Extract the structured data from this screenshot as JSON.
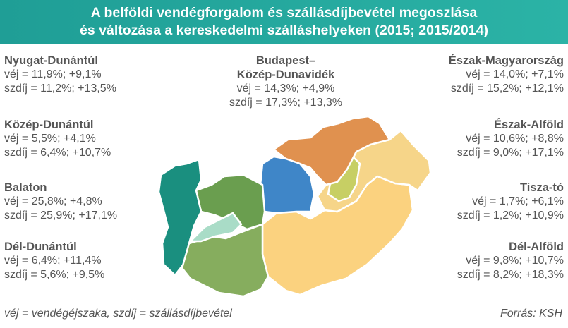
{
  "header": {
    "title_line1": "A belföldi vendégforgalom és szállásdíjbevétel megoszlása",
    "title_line2": "és változása a kereskedelmi szálláshelyeken (2015; 2015/2014)"
  },
  "regions": {
    "nyugat_dunantul": {
      "name": "Nyugat-Dunántúl",
      "vej": "véj = 11,9%; +9,1%",
      "szdij": "szdíj = 11,2%; +13,5%",
      "color": "#1a8f7f"
    },
    "kozep_dunantul": {
      "name": "Közép-Dunántúl",
      "vej": "véj = 5,5%; +4,1%",
      "szdij": "szdíj = 6,4%; +10,7%",
      "color": "#6a9e4f"
    },
    "balaton": {
      "name": "Balaton",
      "vej": "véj = 25,8%; +4,8%",
      "szdij": "szdíj = 25,9%; +17,1%",
      "color": "#a9dcc7"
    },
    "del_dunantul": {
      "name": "Dél-Dunántúl",
      "vej": "véj = 6,4%; +11,4%",
      "szdij": "szdíj = 5,6%; +9,5%",
      "color": "#86ad5e"
    },
    "budapest": {
      "name_line1": "Budapest–",
      "name_line2": "Közép-Dunavidék",
      "vej": "véj = 14,3%; +4,9%",
      "szdij": "szdíj = 17,3%; +13,3%",
      "color": "#3f86c8"
    },
    "eszak_magyarorszag": {
      "name": "Észak-Magyarország",
      "vej": "véj = 14,0%; +7,1%",
      "szdij": "szdíj = 15,2%; +12,1%",
      "color": "#e0914f"
    },
    "eszak_alfold": {
      "name": "Észak-Alföld",
      "vej": "véj = 10,6%; +8,8%",
      "szdij": "szdíj = 9,0%; +17,1%",
      "color": "#f6d589"
    },
    "tisza_to": {
      "name": "Tisza-tó",
      "vej": "véj = 1,7%; +6,1%",
      "szdij": "szdíj = 1,2%; +10,9%",
      "color": "#c7cf64"
    },
    "del_alfold": {
      "name": "Dél-Alföld",
      "vej": "véj = 9,8%; +10,7%",
      "szdij": "szdíj = 8,2%; +18,3%",
      "color": "#fbd27f"
    }
  },
  "footer": {
    "legend": "véj = vendégéjszaka, szdíj = szállásdíjbevétel",
    "source": "Forrás: KSH"
  }
}
